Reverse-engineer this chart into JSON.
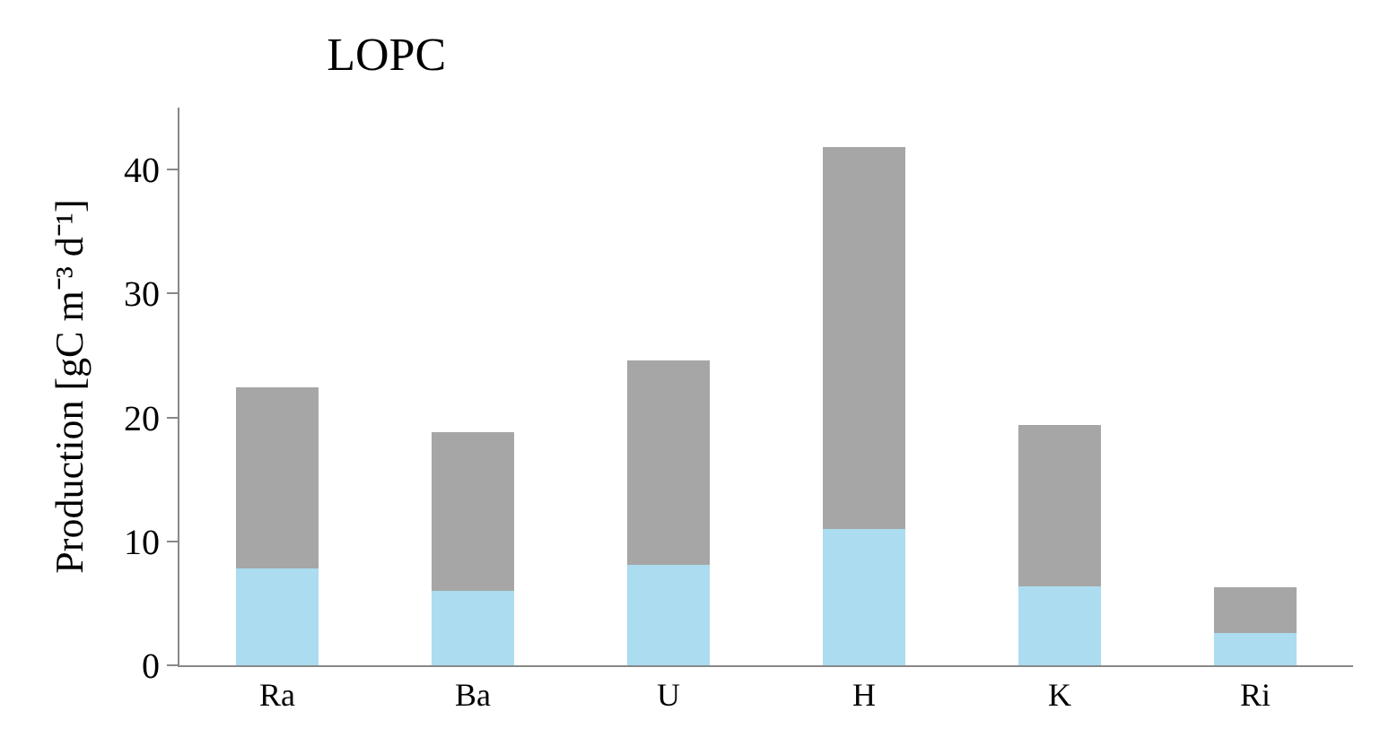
{
  "chart_data": {
    "type": "bar",
    "title": "LOPC",
    "ylabel": "Production [gC m⁻³ d⁻¹]",
    "categories": [
      "Ra",
      "Ba",
      "U",
      "H",
      "K",
      "Ri"
    ],
    "stacked": true,
    "series": [
      {
        "color": "#abdcf0",
        "values": [
          7.8,
          6.0,
          8.1,
          11.0,
          6.4,
          2.6
        ]
      },
      {
        "color": "#a6a6a6",
        "values": [
          14.6,
          12.8,
          16.5,
          30.8,
          13.0,
          3.7
        ]
      }
    ],
    "ylim": [
      0,
      45
    ],
    "yticks": [
      0,
      10,
      20,
      30,
      40
    ],
    "grid": false,
    "legend": false
  }
}
